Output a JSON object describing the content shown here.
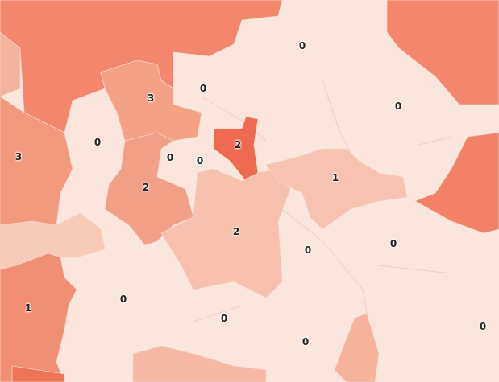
{
  "map": {
    "type": "choropleth",
    "colors": {
      "background": "#fbe6de",
      "value_0": "#fbe4dc",
      "value_1": "#f7c2ae",
      "value_2": "#f2a085",
      "value_3": "#f3a286",
      "high": "#f3866c",
      "highest": "#ee6b51"
    },
    "region_labels": [
      "0",
      "0",
      "3",
      "0",
      "0",
      "3",
      "2",
      "0",
      "0",
      "1",
      "2",
      "2",
      "0",
      "0",
      "0",
      "1",
      "0",
      "0",
      "0"
    ]
  }
}
